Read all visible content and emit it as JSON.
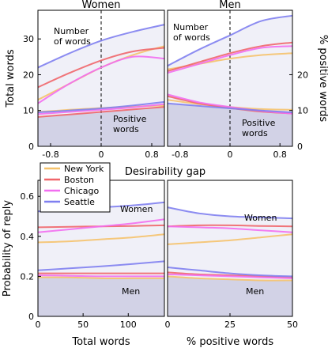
{
  "colors": {
    "New York": "#f5c26b",
    "Boston": "#f0666a",
    "Chicago": "#f26ef0",
    "Seattle": "#7f7ff0",
    "shade_upper": "#f0f0f8",
    "shade_lower": "#c8c8e0"
  },
  "legend": {
    "placement": "top-left of bottom-left panel",
    "entries": [
      "New York",
      "Boston",
      "Chicago",
      "Seattle"
    ]
  },
  "chart_data": [
    {
      "type": "line",
      "title": "Women",
      "xlabel": "Desirability gap",
      "ylabel": "Total words",
      "xlim": [
        -1.0,
        1.0
      ],
      "ylim": [
        0,
        38
      ],
      "xticks": [
        -0.8,
        0,
        0.8
      ],
      "yticks": [
        0,
        10,
        20,
        30
      ],
      "vline_dashed_at": 0,
      "annotations": [
        "Number\nof words",
        "Positive\nwords"
      ],
      "x": [
        -1.0,
        -0.5,
        0.0,
        0.5,
        1.0
      ],
      "series": [
        {
          "name": "New York",
          "group": "words",
          "values": [
            13,
            17.5,
            22,
            25.5,
            28
          ]
        },
        {
          "name": "Boston",
          "group": "words",
          "values": [
            16.5,
            20.5,
            24,
            26.5,
            27.5
          ]
        },
        {
          "name": "Chicago",
          "group": "words",
          "values": [
            12,
            17.5,
            22,
            25,
            24.5
          ]
        },
        {
          "name": "Seattle",
          "group": "words",
          "values": [
            22,
            26,
            29.5,
            32,
            34
          ]
        },
        {
          "name": "New York",
          "group": "positive",
          "values": [
            9.6,
            10.2,
            10.7,
            11.1,
            11.4
          ]
        },
        {
          "name": "Boston",
          "group": "positive",
          "values": [
            8.2,
            8.9,
            9.6,
            10.3,
            11
          ]
        },
        {
          "name": "Chicago",
          "group": "positive",
          "values": [
            9,
            9.6,
            10.2,
            10.9,
            11.8
          ]
        },
        {
          "name": "Seattle",
          "group": "positive",
          "values": [
            9.5,
            10,
            10.6,
            11.4,
            12.4
          ]
        }
      ]
    },
    {
      "type": "line",
      "title": "Men",
      "xlabel": "Desirability gap",
      "ylabel": "% positive words",
      "xlim": [
        -1.0,
        1.0
      ],
      "ylim": [
        0,
        38
      ],
      "xticks": [
        -0.8,
        0,
        0.8
      ],
      "yticks_right": [
        0,
        10,
        20
      ],
      "vline_dashed_at": 0,
      "annotations": [
        "Number\nof words",
        "Positive\nwords"
      ],
      "x": [
        -1.0,
        -0.5,
        0.0,
        0.5,
        1.0
      ],
      "series": [
        {
          "name": "New York",
          "group": "words",
          "values": [
            21.5,
            23,
            24.5,
            25.5,
            26
          ]
        },
        {
          "name": "Boston",
          "group": "words",
          "values": [
            21,
            23.5,
            26,
            28,
            29
          ]
        },
        {
          "name": "Chicago",
          "group": "words",
          "values": [
            20.5,
            23,
            25.5,
            27.5,
            28
          ]
        },
        {
          "name": "Seattle",
          "group": "words",
          "values": [
            22.5,
            27,
            31,
            35,
            36.5
          ]
        },
        {
          "name": "New York",
          "group": "positive",
          "values": [
            13,
            11.8,
            11,
            10.4,
            10.2
          ]
        },
        {
          "name": "Boston",
          "group": "positive",
          "values": [
            14,
            12,
            10.7,
            9.7,
            9.2
          ]
        },
        {
          "name": "Chicago",
          "group": "positive",
          "values": [
            14.5,
            12.3,
            11,
            9.9,
            9.1
          ]
        },
        {
          "name": "Seattle",
          "group": "positive",
          "values": [
            12,
            11.3,
            10.6,
            10,
            9.5
          ]
        }
      ]
    },
    {
      "type": "line",
      "title": "",
      "xlabel": "Total words",
      "ylabel": "Probability of reply",
      "xlim": [
        0,
        140
      ],
      "ylim": [
        0,
        0.68
      ],
      "xticks": [
        0,
        50,
        100
      ],
      "yticks": [
        0,
        0.2,
        0.4,
        0.6
      ],
      "annotations": [
        "Women",
        "Men"
      ],
      "x": [
        0,
        35,
        70,
        105,
        140
      ],
      "series": [
        {
          "name": "New York",
          "group": "women",
          "values": [
            0.37,
            0.375,
            0.385,
            0.395,
            0.41
          ]
        },
        {
          "name": "Boston",
          "group": "women",
          "values": [
            0.445,
            0.448,
            0.45,
            0.452,
            0.455
          ]
        },
        {
          "name": "Chicago",
          "group": "women",
          "values": [
            0.42,
            0.435,
            0.45,
            0.465,
            0.485
          ]
        },
        {
          "name": "Seattle",
          "group": "women",
          "values": [
            0.525,
            0.535,
            0.545,
            0.555,
            0.57
          ]
        },
        {
          "name": "New York",
          "group": "men",
          "values": [
            0.195,
            0.195,
            0.19,
            0.19,
            0.19
          ]
        },
        {
          "name": "Boston",
          "group": "men",
          "values": [
            0.215,
            0.215,
            0.215,
            0.215,
            0.215
          ]
        },
        {
          "name": "Chicago",
          "group": "men",
          "values": [
            0.205,
            0.203,
            0.2,
            0.2,
            0.2
          ]
        },
        {
          "name": "Seattle",
          "group": "men",
          "values": [
            0.23,
            0.24,
            0.25,
            0.262,
            0.275
          ]
        }
      ]
    },
    {
      "type": "line",
      "title": "",
      "xlabel": "% positive words",
      "ylabel": "",
      "xlim": [
        0,
        50
      ],
      "ylim": [
        0,
        0.68
      ],
      "xticks": [
        0,
        25,
        50
      ],
      "annotations": [
        "Women",
        "Men"
      ],
      "x": [
        0,
        12.5,
        25,
        37.5,
        50
      ],
      "series": [
        {
          "name": "New York",
          "group": "women",
          "values": [
            0.36,
            0.37,
            0.38,
            0.395,
            0.41
          ]
        },
        {
          "name": "Boston",
          "group": "women",
          "values": [
            0.45,
            0.455,
            0.455,
            0.452,
            0.45
          ]
        },
        {
          "name": "Chicago",
          "group": "women",
          "values": [
            0.45,
            0.445,
            0.44,
            0.43,
            0.42
          ]
        },
        {
          "name": "Seattle",
          "group": "women",
          "values": [
            0.545,
            0.515,
            0.5,
            0.495,
            0.49
          ]
        },
        {
          "name": "New York",
          "group": "men",
          "values": [
            0.2,
            0.19,
            0.185,
            0.18,
            0.18
          ]
        },
        {
          "name": "Boston",
          "group": "men",
          "values": [
            0.22,
            0.21,
            0.205,
            0.2,
            0.195
          ]
        },
        {
          "name": "Chicago",
          "group": "men",
          "values": [
            0.21,
            0.205,
            0.2,
            0.195,
            0.19
          ]
        },
        {
          "name": "Seattle",
          "group": "men",
          "values": [
            0.245,
            0.23,
            0.215,
            0.205,
            0.2
          ]
        }
      ]
    }
  ]
}
